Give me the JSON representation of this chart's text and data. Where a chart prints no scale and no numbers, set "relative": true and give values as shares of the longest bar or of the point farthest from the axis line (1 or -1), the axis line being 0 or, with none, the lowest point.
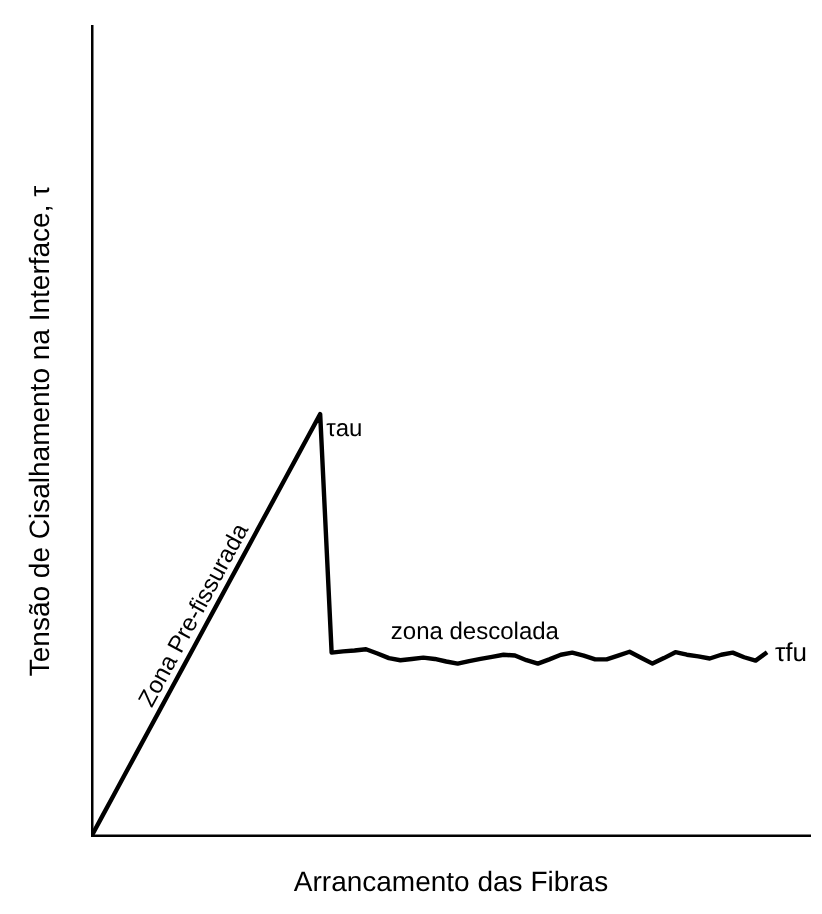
{
  "chart_data": {
    "type": "line",
    "relative": true,
    "xlabel": "Arrancamento das Fibras",
    "ylabel": "Tensão de Cisalhamento na Interface, τ",
    "categories": [
      null,
      null,
      null,
      null,
      null,
      null,
      null,
      null,
      null,
      null,
      null,
      null,
      null,
      null,
      null,
      null,
      null,
      null,
      null,
      null,
      null,
      null,
      null,
      null,
      null,
      null,
      null,
      null,
      null,
      null,
      null,
      null,
      null,
      null,
      null,
      null,
      null,
      null,
      null,
      null,
      null,
      null,
      null,
      null,
      null,
      null,
      null,
      null,
      null,
      null,
      null,
      null,
      null,
      null,
      null,
      null,
      null,
      null,
      null,
      null
    ],
    "grid": false,
    "marker": "none",
    "line_style": "solid",
    "series": [
      {
        "color": "#000000",
        "values": [
          0,
          0.05,
          0.1,
          0.15,
          0.2,
          0.25,
          0.3,
          0.35,
          0.4,
          0.45,
          0.5,
          0.55,
          0.6,
          0.65,
          0.7,
          0.75,
          0.8,
          0.85,
          0.9,
          0.95,
          1,
          0.436,
          0.439,
          0.441,
          0.444,
          0.434,
          0.423,
          0.418,
          0.421,
          0.424,
          0.421,
          0.415,
          0.41,
          0.416,
          0.421,
          0.426,
          0.431,
          0.429,
          0.418,
          0.41,
          0.42,
          0.431,
          0.436,
          0.429,
          0.42,
          0.42,
          0.429,
          0.438,
          0.424,
          0.41,
          0.423,
          0.437,
          0.431,
          0.427,
          0.422,
          0.431,
          0.436,
          0.425,
          0.417,
          0.437
        ]
      }
    ],
    "annotations": [
      "τau",
      "τfu",
      "Zona Pre-fissurada",
      "zona descolada"
    ]
  }
}
